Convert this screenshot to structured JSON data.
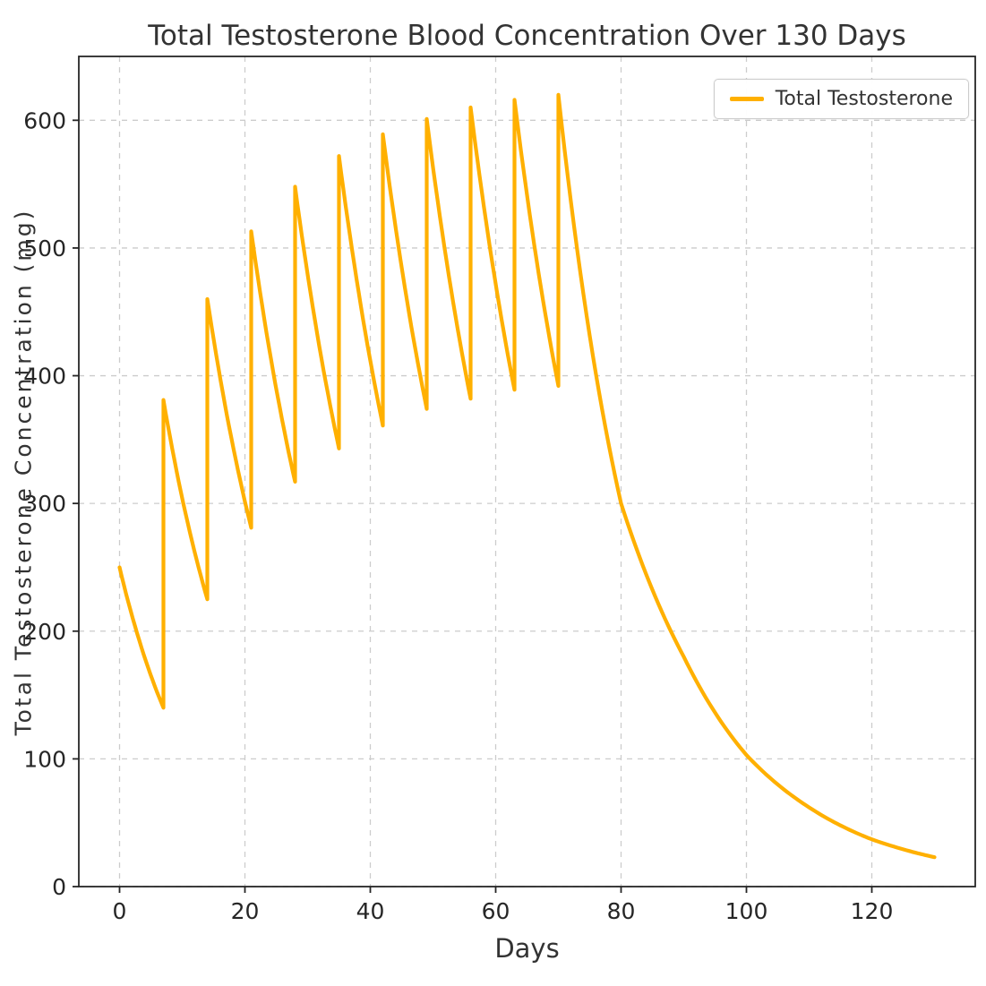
{
  "chart_data": {
    "type": "line",
    "title": "Total Testosterone Blood Concentration Over 130 Days",
    "xlabel": "Days",
    "ylabel": "Total Testosterone Concentration (mg)",
    "xlim": [
      -6.5,
      136.5
    ],
    "ylim": [
      0,
      650
    ],
    "xticks": [
      0,
      20,
      40,
      60,
      80,
      100,
      120
    ],
    "yticks": [
      0,
      100,
      200,
      300,
      400,
      500,
      600
    ],
    "grid": true,
    "grid_style": "dashed",
    "grid_color": "#cccccc",
    "axis_color": "#262626",
    "legend": {
      "position": "upper right",
      "entries": [
        "Total Testosterone"
      ]
    },
    "series": [
      {
        "name": "Total Testosterone",
        "color": "#FFB000",
        "interpolation": "exponential-decay-between-points",
        "points": [
          [
            0,
            250
          ],
          [
            7,
            140
          ],
          [
            7,
            381
          ],
          [
            14,
            225
          ],
          [
            14,
            460
          ],
          [
            21,
            281
          ],
          [
            21,
            513
          ],
          [
            28,
            317
          ],
          [
            28,
            548
          ],
          [
            35,
            343
          ],
          [
            35,
            572
          ],
          [
            42,
            361
          ],
          [
            42,
            589
          ],
          [
            49,
            374
          ],
          [
            49,
            601
          ],
          [
            56,
            382
          ],
          [
            56,
            610
          ],
          [
            63,
            389
          ],
          [
            63,
            616
          ],
          [
            70,
            392
          ],
          [
            70,
            620
          ],
          [
            80,
            300
          ],
          [
            90,
            180
          ],
          [
            100,
            103
          ],
          [
            110,
            62
          ],
          [
            120,
            37
          ],
          [
            130,
            23
          ]
        ]
      }
    ]
  }
}
